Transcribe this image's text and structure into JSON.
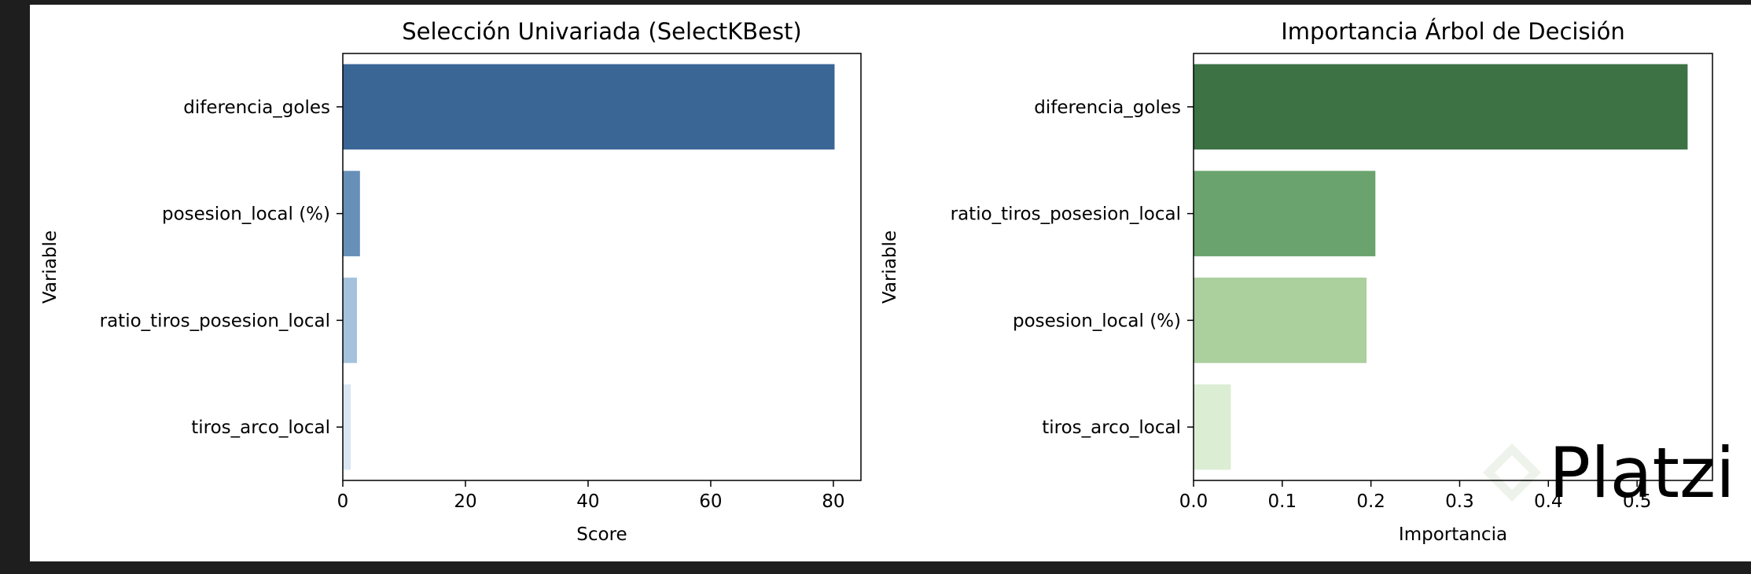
{
  "chart_data": [
    {
      "type": "bar",
      "orientation": "horizontal",
      "title": "Selección Univariada (SelectKBest)",
      "xlabel": "Score",
      "ylabel": "Variable",
      "categories": [
        "diferencia_goles",
        "posesion_local (%)",
        "ratio_tiros_posesion_local",
        "tiros_arco_local"
      ],
      "values": [
        80.2,
        2.8,
        2.3,
        1.3
      ],
      "colors": [
        "#3a6696",
        "#6790b8",
        "#a4c2dc",
        "#dae6f2"
      ],
      "xlim": [
        0,
        84.5
      ],
      "xticks": [
        0,
        20,
        40,
        60,
        80
      ],
      "xtick_labels": [
        "0",
        "20",
        "40",
        "60",
        "80"
      ],
      "grid": false
    },
    {
      "type": "bar",
      "orientation": "horizontal",
      "title": "Importancia Árbol de Decisión",
      "xlabel": "Importancia",
      "ylabel": "Variable",
      "categories": [
        "diferencia_goles",
        "ratio_tiros_posesion_local",
        "posesion_local (%)",
        "tiros_arco_local"
      ],
      "values": [
        0.557,
        0.205,
        0.195,
        0.042
      ],
      "colors": [
        "#3c7244",
        "#6aa36d",
        "#abcf9d",
        "#dbedd3"
      ],
      "xlim": [
        0,
        0.585
      ],
      "xticks": [
        0,
        0.1,
        0.2,
        0.3,
        0.4,
        0.5
      ],
      "xtick_labels": [
        "0.0",
        "0.1",
        "0.2",
        "0.3",
        "0.4",
        "0.5"
      ],
      "grid": false
    }
  ],
  "watermark": {
    "text": "Platzi",
    "color": "#e8efe6",
    "icon": "platzi-logo-icon"
  }
}
